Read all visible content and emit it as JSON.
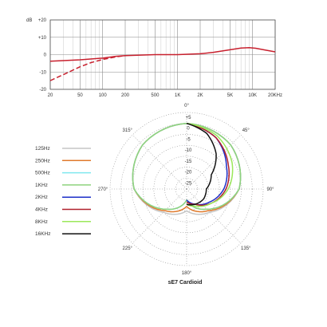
{
  "chart_data": [
    {
      "type": "line",
      "xscale": "log",
      "xlim": [
        20,
        20000
      ],
      "ylim": [
        -20,
        20
      ],
      "ylabel": "dB",
      "x_ticks": [
        20,
        50,
        100,
        200,
        500,
        1000,
        2000,
        5000,
        10000,
        20000
      ],
      "x_tick_labels": [
        "20",
        "50",
        "100",
        "200",
        "500",
        "1K",
        "2K",
        "5K",
        "10K",
        "20KHz"
      ],
      "y_ticks": [
        20,
        10,
        0,
        -10,
        -20
      ],
      "y_tick_labels": [
        "+20",
        "+10",
        "0",
        "-10",
        "-20"
      ],
      "grid": true,
      "series": [
        {
          "style": "solid",
          "color": "#c8202e",
          "x": [
            20,
            50,
            100,
            150,
            200,
            500,
            1000,
            2000,
            3000,
            5000,
            7000,
            9000,
            11000,
            15000,
            20000
          ],
          "y": [
            -3.8,
            -3,
            -2,
            -1,
            -0.6,
            0,
            0,
            0.5,
            1.3,
            2.8,
            3.8,
            4.0,
            3.7,
            2.6,
            1.6
          ]
        },
        {
          "style": "dashed",
          "color": "#c8202e",
          "x": [
            20,
            30,
            50,
            70,
            100,
            150,
            200
          ],
          "y": [
            -15,
            -11.5,
            -7,
            -4.6,
            -2.8,
            -1.3,
            -0.6
          ]
        }
      ]
    },
    {
      "type": "polar",
      "title": "sE7 Cardioid",
      "angle_ticks": [
        0,
        45,
        90,
        135,
        180,
        225,
        270,
        315
      ],
      "angle_tick_labels": [
        "0°",
        "45°",
        "90°",
        "135°",
        "180°",
        "225°",
        "270°",
        "315°"
      ],
      "radial_ticks": [
        5,
        0,
        -5,
        -10,
        -15,
        -20,
        -25
      ],
      "radial_tick_labels": [
        "+5",
        "0",
        "-5",
        "-10",
        "-15",
        "-20",
        "-25"
      ],
      "rlim": [
        -30,
        5
      ],
      "grid": true,
      "legend_position": "left",
      "series": [
        {
          "name": "125Hz",
          "color": "#c6c6c6",
          "angles": [
            0,
            45,
            90,
            135,
            180,
            225,
            270,
            315,
            360
          ],
          "values": [
            0,
            -1.5,
            -6,
            -15,
            -20,
            -15,
            -6,
            -1.5,
            0
          ]
        },
        {
          "name": "250Hz",
          "color": "#e07a2c",
          "angles": [
            0,
            45,
            90,
            135,
            180,
            225,
            270,
            315,
            360
          ],
          "values": [
            0,
            -1.5,
            -6,
            -16,
            -22,
            -16,
            -6,
            -1.5,
            0
          ]
        },
        {
          "name": "500Hz",
          "color": "#7fe8ee",
          "angles": [
            0,
            45,
            90,
            135,
            180,
            225,
            270,
            315,
            360
          ],
          "values": [
            0,
            -1.5,
            -6,
            -17,
            -25,
            -17,
            -6,
            -1.5,
            0
          ]
        },
        {
          "name": "1KHz",
          "color": "#8ed27e",
          "angles": [
            0,
            45,
            90,
            135,
            180,
            225,
            270,
            315,
            360
          ],
          "values": [
            0,
            -1.5,
            -6,
            -17,
            -25,
            -17,
            -6,
            -1.5,
            0
          ]
        },
        {
          "name": "2KHz",
          "color": "#1c2ec8",
          "angles": [
            0,
            30,
            60,
            90,
            120,
            150,
            180
          ],
          "values": [
            0,
            -3,
            -9,
            -13,
            -18,
            -22,
            -25
          ]
        },
        {
          "name": "4KHz",
          "color": "#b0202c",
          "angles": [
            0,
            30,
            60,
            90,
            120,
            150,
            180
          ],
          "values": [
            0,
            -3,
            -8,
            -12,
            -17,
            -22,
            -24
          ]
        },
        {
          "name": "8KHz",
          "color": "#9be85a",
          "angles": [
            0,
            30,
            60,
            90,
            120,
            150,
            180
          ],
          "values": [
            0,
            -2,
            -6,
            -11,
            -17,
            -21,
            -23
          ]
        },
        {
          "name": "16KHz",
          "color": "#111111",
          "angles": [
            0,
            20,
            40,
            60,
            90,
            120,
            150,
            180
          ],
          "values": [
            0,
            -3,
            -9,
            -17,
            -21,
            -21,
            -22,
            -23
          ]
        }
      ]
    }
  ]
}
